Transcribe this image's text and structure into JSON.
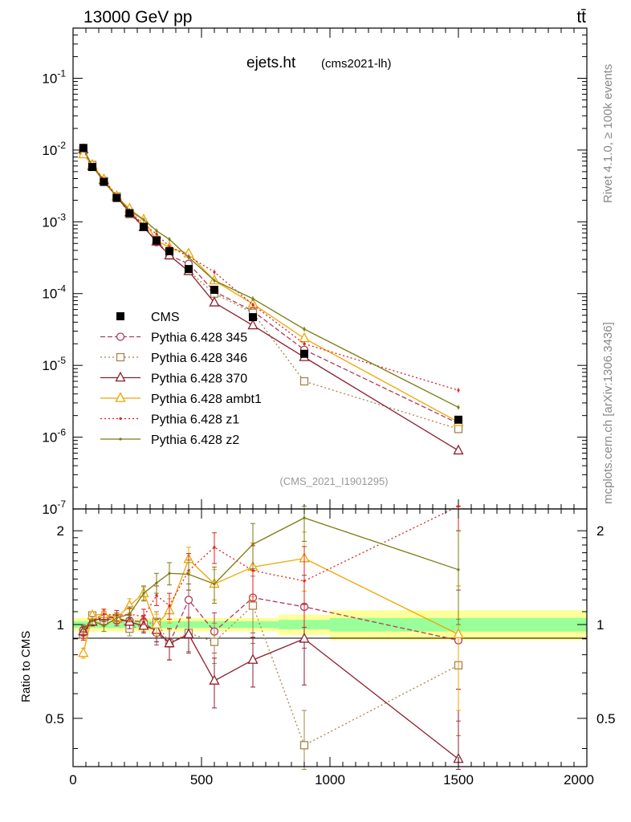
{
  "header": {
    "beam_label": "13000 GeV pp",
    "process_label": "tt̄"
  },
  "side_labels": {
    "rivet": "Rivet 4.1.0, ≥ 100k events",
    "mcplots": "mcplots.cern.ch [arXiv:1306.3436]"
  },
  "chart_data": [
    {
      "type": "line",
      "title": "ejets.ht",
      "subtitle": "(cms2021-lh)",
      "watermark": "(CMS_2021_I1901295)",
      "yscale": "log",
      "xlim": [
        0,
        2000
      ],
      "ylim": [
        1e-07,
        0.5
      ],
      "ytick_labels": [
        "10^-7",
        "10^-6",
        "10^-5",
        "10^-4",
        "10^-3",
        "10^-2",
        "10^-1"
      ],
      "legend_position": "left",
      "x": [
        40,
        75,
        120,
        170,
        220,
        275,
        325,
        375,
        450,
        550,
        700,
        900,
        1500
      ],
      "data": {
        "name": "CMS",
        "values": [
          0.0107,
          0.0058,
          0.0036,
          0.00215,
          0.00132,
          0.00085,
          0.00055,
          0.00039,
          0.00022,
          0.000113,
          4.7e-05,
          1.45e-05,
          1.75e-06
        ]
      },
      "series": [
        {
          "name": "Pythia 6.428 345",
          "color": "#b03a5a",
          "marker": "circle",
          "dash": "6,3",
          "values": [
            0.0103,
            0.0061,
            0.0038,
            0.00221,
            0.00136,
            0.00087,
            0.00052,
            0.00034,
            0.00026,
            0.000107,
            5.7e-05,
            1.65e-05,
            1.55e-06
          ]
        },
        {
          "name": "Pythia 6.428 346",
          "color": "#a8834a",
          "marker": "square",
          "dash": "2,3",
          "values": [
            0.0099,
            0.0062,
            0.0037,
            0.00225,
            0.00128,
            0.00085,
            0.00056,
            0.00034,
            0.000207,
            0.0001,
            5.4e-05,
            6e-06,
            1.3e-06
          ]
        },
        {
          "name": "Pythia 6.428 370",
          "color": "#8e1e2e",
          "marker": "triangle",
          "dash": "",
          "values": [
            0.0102,
            0.0059,
            0.0038,
            0.00225,
            0.00135,
            0.00084,
            0.00053,
            0.00034,
            0.000205,
            7.5e-05,
            3.6e-05,
            1.3e-05,
            6.5e-07
          ]
        },
        {
          "name": "Pythia 6.428 ambt1",
          "color": "#f0a500",
          "marker": "triangle",
          "dash": "",
          "values": [
            0.0087,
            0.0062,
            0.0039,
            0.00225,
            0.00152,
            0.00107,
            0.00055,
            0.00044,
            0.00036,
            0.000152,
            7.2e-05,
            2.38e-05,
            1.62e-06
          ]
        },
        {
          "name": "Pythia 6.428 z1",
          "color": "#e02020",
          "marker": "dot",
          "dash": "2,3",
          "values": [
            0.0099,
            0.006,
            0.0039,
            0.0023,
            0.00143,
            0.0009,
            0.00068,
            0.00045,
            0.00033,
            0.0002,
            7e-05,
            2e-05,
            4.5e-06
          ]
        },
        {
          "name": "Pythia 6.428 z2",
          "color": "#7a7a10",
          "marker": "dot",
          "dash": "",
          "values": [
            0.0104,
            0.006,
            0.0036,
            0.00225,
            0.00143,
            0.00107,
            0.00075,
            0.00057,
            0.00032,
            0.000152,
            8.5e-05,
            3.2e-05,
            2.6e-06
          ]
        }
      ]
    },
    {
      "type": "line",
      "ylabel": "Ratio to CMS",
      "yscale": "log",
      "xlim": [
        0,
        2000
      ],
      "ylim": [
        0.35,
        2.35
      ],
      "ytick_labels": [
        "0.5",
        "1",
        "2"
      ],
      "xtick_labels": [
        "0",
        "500",
        "1000",
        "1500",
        "2000"
      ],
      "reference_band": {
        "edges": [
          0,
          800,
          1000,
          2000
        ],
        "inner": [
          0.025,
          0.035,
          0.05
        ],
        "outer": [
          0.05,
          0.075,
          0.11
        ]
      },
      "x": [
        40,
        75,
        120,
        170,
        220,
        275,
        325,
        375,
        450,
        550,
        700,
        900,
        1500
      ],
      "series": [
        {
          "name": "Pythia 6.428 345",
          "color": "#b03a5a",
          "marker": "circle",
          "dash": "6,3",
          "values": [
            0.96,
            1.05,
            1.05,
            1.03,
            1.03,
            1.02,
            0.94,
            0.87,
            1.2,
            0.95,
            1.22,
            1.14,
            0.89
          ],
          "errors": [
            0.03,
            0.03,
            0.04,
            0.04,
            0.05,
            0.05,
            0.08,
            0.1,
            0.15,
            0.14,
            0.28,
            0.3,
            0.4
          ]
        },
        {
          "name": "Pythia 6.428 346",
          "color": "#a8834a",
          "marker": "square",
          "dash": "2,3",
          "values": [
            0.93,
            1.07,
            1.03,
            1.05,
            0.97,
            1.0,
            1.02,
            0.87,
            0.94,
            0.88,
            1.15,
            0.41,
            0.74
          ],
          "errors": [
            0.03,
            0.03,
            0.04,
            0.04,
            0.05,
            0.05,
            0.08,
            0.1,
            0.12,
            0.13,
            0.28,
            0.12,
            0.3
          ]
        },
        {
          "name": "Pythia 6.428 370",
          "color": "#8e1e2e",
          "marker": "triangle",
          "dash": "",
          "values": [
            0.95,
            1.02,
            1.06,
            1.05,
            1.02,
            0.99,
            0.96,
            0.87,
            0.93,
            0.66,
            0.77,
            0.9,
            0.37
          ],
          "errors": [
            0.03,
            0.03,
            0.04,
            0.04,
            0.05,
            0.05,
            0.08,
            0.1,
            0.12,
            0.12,
            0.14,
            0.26,
            0.25
          ]
        },
        {
          "name": "Pythia 6.428 ambt1",
          "color": "#f0a500",
          "marker": "triangle",
          "dash": "",
          "values": [
            0.81,
            1.07,
            1.08,
            1.05,
            1.15,
            1.26,
            1.0,
            1.11,
            1.62,
            1.35,
            1.53,
            1.63,
            0.93
          ],
          "errors": [
            0.03,
            0.03,
            0.04,
            0.04,
            0.06,
            0.06,
            0.08,
            0.1,
            0.15,
            0.15,
            0.3,
            0.35,
            0.4
          ]
        },
        {
          "name": "Pythia 6.428 z1",
          "color": "#e02020",
          "marker": "dot",
          "dash": "2,3",
          "values": [
            0.92,
            1.03,
            1.08,
            1.07,
            1.08,
            1.06,
            1.24,
            1.15,
            1.49,
            1.77,
            1.49,
            1.38,
            2.6
          ],
          "errors": [
            0.03,
            0.03,
            0.04,
            0.04,
            0.05,
            0.06,
            0.09,
            0.11,
            0.2,
            0.2,
            0.3,
            0.4,
            0.6
          ]
        },
        {
          "name": "Pythia 6.428 z2",
          "color": "#7a7a10",
          "marker": "dot",
          "dash": "",
          "values": [
            0.97,
            1.03,
            0.99,
            1.05,
            1.08,
            1.26,
            1.36,
            1.46,
            1.45,
            1.35,
            1.81,
            2.2,
            1.5
          ],
          "errors": [
            0.03,
            0.03,
            0.04,
            0.04,
            0.06,
            0.07,
            0.1,
            0.12,
            0.16,
            0.18,
            0.3,
            0.35,
            0.5
          ]
        }
      ]
    }
  ]
}
